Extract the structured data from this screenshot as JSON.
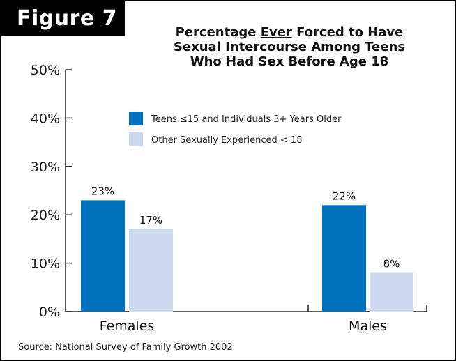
{
  "figure_label": "Figure 7",
  "title": {
    "line1_pre": "Percentage ",
    "line1_ever": "Ever",
    "line1_post": " Forced to Have",
    "line2": "Sexual Intercourse Among Teens",
    "line3": "Who Had Sex Before Age 18"
  },
  "source": "Source: National Survey of Family Growth 2002",
  "colors": {
    "series1": "#0071bc",
    "series2": "#cdd9ef"
  },
  "chart_data": {
    "type": "bar",
    "categories": [
      "Females",
      "Males"
    ],
    "series": [
      {
        "name": "Teens ≤15 and Individuals 3+ Years Older",
        "values": [
          23,
          22
        ],
        "labels": [
          "23%",
          "22%"
        ]
      },
      {
        "name": "Other Sexually Experienced < 18",
        "values": [
          17,
          8
        ],
        "labels": [
          "17%",
          "8%"
        ]
      }
    ],
    "ylim": [
      0,
      50
    ],
    "yticks": [
      0,
      10,
      20,
      30,
      40,
      50
    ],
    "ytick_labels": [
      "0%",
      "10%",
      "20%",
      "30%",
      "40%",
      "50%"
    ],
    "grid": false,
    "legend_position": "top-center"
  }
}
